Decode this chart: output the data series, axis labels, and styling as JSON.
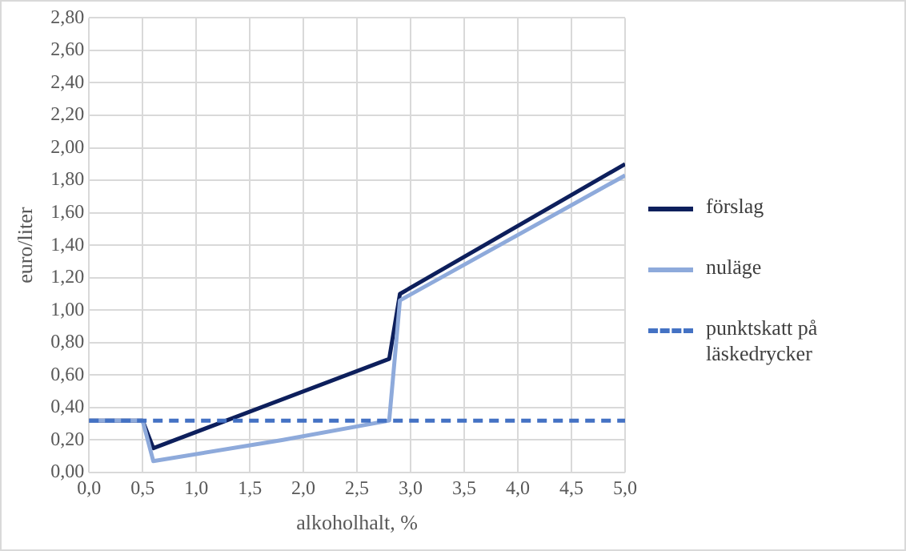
{
  "chart_data": {
    "type": "line",
    "xlabel": "alkoholhalt, %",
    "ylabel": "euro/liter",
    "xlim": [
      0,
      5
    ],
    "ylim": [
      0,
      2.8
    ],
    "xticks": [
      {
        "value": 0,
        "label": "0,0"
      },
      {
        "value": 0.5,
        "label": "0,5"
      },
      {
        "value": 1,
        "label": "1,0"
      },
      {
        "value": 1.5,
        "label": "1,5"
      },
      {
        "value": 2,
        "label": "2,0"
      },
      {
        "value": 2.5,
        "label": "2,5"
      },
      {
        "value": 3,
        "label": "3,0"
      },
      {
        "value": 3.5,
        "label": "3,5"
      },
      {
        "value": 4,
        "label": "4,0"
      },
      {
        "value": 4.5,
        "label": "4,5"
      },
      {
        "value": 5,
        "label": "5,0"
      }
    ],
    "yticks": [
      {
        "value": 0,
        "label": "0,00"
      },
      {
        "value": 0.2,
        "label": "0,20"
      },
      {
        "value": 0.4,
        "label": "0,40"
      },
      {
        "value": 0.6,
        "label": "0,60"
      },
      {
        "value": 0.8,
        "label": "0,80"
      },
      {
        "value": 1,
        "label": "1,00"
      },
      {
        "value": 1.2,
        "label": "1,20"
      },
      {
        "value": 1.4,
        "label": "1,40"
      },
      {
        "value": 1.6,
        "label": "1,60"
      },
      {
        "value": 1.8,
        "label": "1,80"
      },
      {
        "value": 2,
        "label": "2,00"
      },
      {
        "value": 2.2,
        "label": "2,20"
      },
      {
        "value": 2.4,
        "label": "2,40"
      },
      {
        "value": 2.6,
        "label": "2,60"
      },
      {
        "value": 2.8,
        "label": "2,80"
      }
    ],
    "grid": true,
    "legend": "right",
    "marker": "none",
    "series": [
      {
        "name": "förslag",
        "color": "#0d1f5c",
        "x": [
          0,
          0.5,
          0.6,
          2.8,
          2.9,
          5
        ],
        "values": [
          0.32,
          0.32,
          0.15,
          0.7,
          1.1,
          1.9
        ]
      },
      {
        "name": "nuläge",
        "color": "#8eaadb",
        "x": [
          0,
          0.5,
          0.6,
          1.8,
          2.8,
          2.9,
          5
        ],
        "values": [
          0.32,
          0.32,
          0.07,
          0.2,
          0.32,
          1.06,
          1.83
        ]
      },
      {
        "name": "punktskatt på läskedrycker",
        "color": "#4472c4",
        "line_style": "dashed",
        "x": [
          0,
          5
        ],
        "values": [
          0.32,
          0.32
        ]
      }
    ]
  }
}
